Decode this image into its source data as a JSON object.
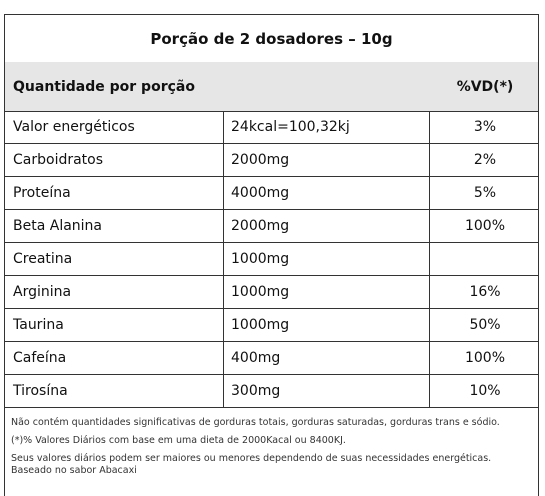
{
  "title": "Porção de 2 dosadores – 10g",
  "header": {
    "left": "Quantidade por porção",
    "right": "%VD(*)"
  },
  "rows": [
    {
      "name": "Valor energéticos",
      "amount": "24kcal=100,32kj",
      "vd": "3%"
    },
    {
      "name": "Carboidratos",
      "amount": "2000mg",
      "vd": "2%"
    },
    {
      "name": "Proteína",
      "amount": "4000mg",
      "vd": "5%"
    },
    {
      "name": "Beta Alanina",
      "amount": "2000mg",
      "vd": "100%"
    },
    {
      "name": "Creatina",
      "amount": "1000mg",
      "vd": ""
    },
    {
      "name": "Arginina",
      "amount": "1000mg",
      "vd": "16%"
    },
    {
      "name": "Taurina",
      "amount": "1000mg",
      "vd": "50%"
    },
    {
      "name": "Cafeína",
      "amount": "400mg",
      "vd": "100%"
    },
    {
      "name": "Tirosína",
      "amount": "300mg",
      "vd": "10%"
    }
  ],
  "footnotes": {
    "line1": "Não contém quantidades significativas de gorduras totais, gorduras saturadas, gorduras trans e sódio.",
    "line2": "(*)% Valores Diários com base em uma dieta de 2000Kacal ou 8400KJ.",
    "line3": "Seus valores diários podem ser maiores ou menores dependendo de suas necessidades energéticas.",
    "line4": "Baseado no sabor Abacaxi"
  }
}
